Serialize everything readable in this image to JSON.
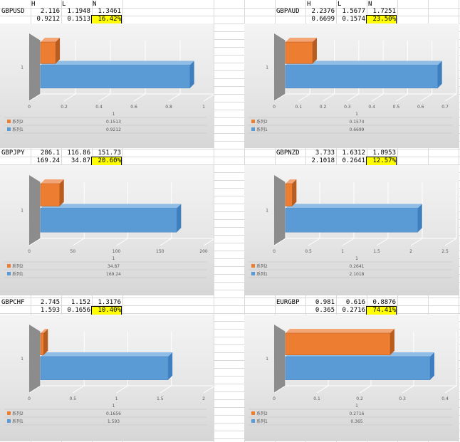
{
  "header_labels": {
    "h": "H",
    "l": "L",
    "n": "N"
  },
  "chart_data": [
    {
      "type": "bar",
      "orientation": "horizontal",
      "symbol": "GBPUSD",
      "top_row": {
        "h": "2.116",
        "l": "1.1948",
        "n": "1.3461"
      },
      "bottom_row": {
        "h": "0.9212",
        "l": "0.1513",
        "n": "16.42%"
      },
      "categories": [
        "1"
      ],
      "series": [
        {
          "name": "系列2",
          "values": [
            0.1513
          ]
        },
        {
          "name": "系列1",
          "values": [
            0.9212
          ]
        }
      ],
      "ticks": [
        "0",
        "0.2",
        "0.4",
        "0.6",
        "0.8",
        "1"
      ],
      "xlim": [
        0,
        1
      ],
      "x_category_label": "1",
      "table_values": {
        "s2": "0.1513",
        "s1": "0.9212"
      }
    },
    {
      "type": "bar",
      "orientation": "horizontal",
      "symbol": "GBPAUD",
      "top_row": {
        "h": "2.2376",
        "l": "1.5677",
        "n": "1.7251"
      },
      "bottom_row": {
        "h": "0.6699",
        "l": "0.1574",
        "n": "23.50%"
      },
      "categories": [
        "1"
      ],
      "series": [
        {
          "name": "系列2",
          "values": [
            0.1574
          ]
        },
        {
          "name": "系列1",
          "values": [
            0.6699
          ]
        }
      ],
      "ticks": [
        "0",
        "0.1",
        "0.2",
        "0.3",
        "0.4",
        "0.5",
        "0.6",
        "0.7"
      ],
      "xlim": [
        0,
        0.7
      ],
      "x_category_label": "1",
      "table_values": {
        "s2": "0.1574",
        "s1": "0.6699"
      }
    },
    {
      "type": "bar",
      "orientation": "horizontal",
      "symbol": "GBPJPY",
      "top_row": {
        "h": "286.1",
        "l": "116.86",
        "n": "151.73"
      },
      "bottom_row": {
        "h": "169.24",
        "l": "34.87",
        "n": "20.60%"
      },
      "categories": [
        "1"
      ],
      "series": [
        {
          "name": "系列2",
          "values": [
            34.87
          ]
        },
        {
          "name": "系列1",
          "values": [
            169.24
          ]
        }
      ],
      "ticks": [
        "0",
        "50",
        "100",
        "150",
        "200"
      ],
      "xlim": [
        0,
        200
      ],
      "x_category_label": "1",
      "table_values": {
        "s2": "34.87",
        "s1": "169.24"
      }
    },
    {
      "type": "bar",
      "orientation": "horizontal",
      "symbol": "GBPNZD",
      "top_row": {
        "h": "3.733",
        "l": "1.6312",
        "n": "1.8953"
      },
      "bottom_row": {
        "h": "2.1018",
        "l": "0.2641",
        "n": "12.57%"
      },
      "categories": [
        "1"
      ],
      "series": [
        {
          "name": "系列2",
          "values": [
            0.2641
          ]
        },
        {
          "name": "系列1",
          "values": [
            2.1018
          ]
        }
      ],
      "ticks": [
        "0",
        "0.5",
        "1",
        "1.5",
        "2",
        "2.5"
      ],
      "xlim": [
        0,
        2.5
      ],
      "x_category_label": "1",
      "table_values": {
        "s2": "0.2641",
        "s1": "2.1018"
      }
    },
    {
      "type": "bar",
      "orientation": "horizontal",
      "symbol": "GBPCHF",
      "top_row": {
        "h": "2.745",
        "l": "1.152",
        "n": "1.3176"
      },
      "bottom_row": {
        "h": "1.593",
        "l": "0.1656",
        "n": "10.40%"
      },
      "categories": [
        "1"
      ],
      "series": [
        {
          "name": "系列2",
          "values": [
            0.1656
          ]
        },
        {
          "name": "系列1",
          "values": [
            1.593
          ]
        }
      ],
      "ticks": [
        "0",
        "0.5",
        "1",
        "1.5",
        "2"
      ],
      "xlim": [
        0,
        2
      ],
      "x_category_label": "1",
      "table_values": {
        "s2": "0.1656",
        "s1": "1.593"
      }
    },
    {
      "type": "bar",
      "orientation": "horizontal",
      "symbol": "EURGBP",
      "top_row": {
        "h": "0.981",
        "l": "0.616",
        "n": "0.8876"
      },
      "bottom_row": {
        "h": "0.365",
        "l": "0.2716",
        "n": "74.41%"
      },
      "categories": [
        "1"
      ],
      "series": [
        {
          "name": "系列2",
          "values": [
            0.2716
          ]
        },
        {
          "name": "系列1",
          "values": [
            0.365
          ]
        }
      ],
      "ticks": [
        "0",
        "0.1",
        "0.2",
        "0.3",
        "0.4"
      ],
      "xlim": [
        0,
        0.4
      ],
      "x_category_label": "1",
      "table_values": {
        "s2": "0.2716",
        "s1": "0.365"
      }
    }
  ]
}
